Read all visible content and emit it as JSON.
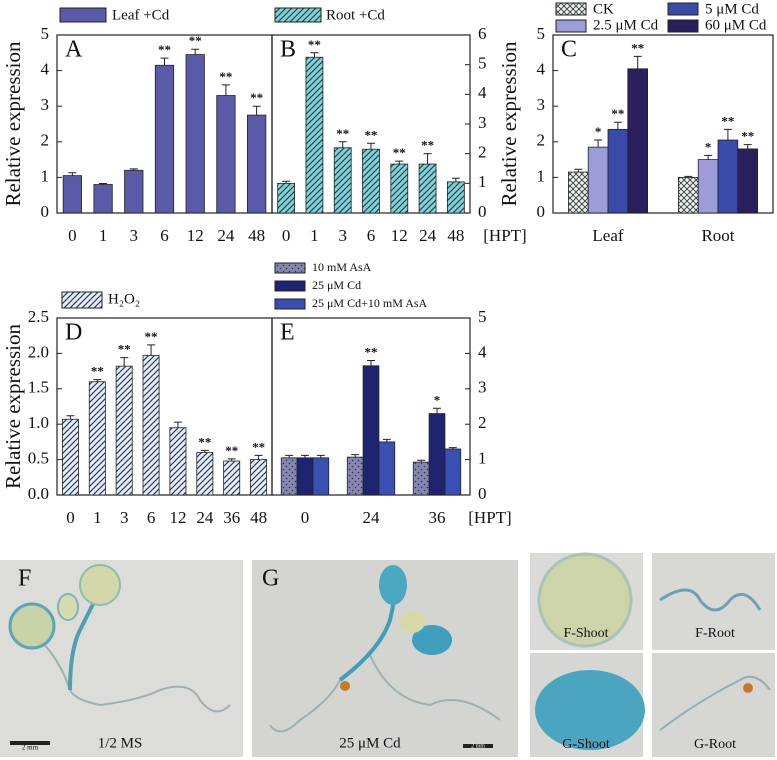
{
  "chart_data": [
    {
      "type": "bar",
      "panel": "A",
      "y_label": "Relative expression",
      "categories": [
        "0",
        "1",
        "3",
        "6",
        "12",
        "24",
        "48"
      ],
      "series": [
        {
          "name": "Leaf +Cd",
          "color": "#5b5aa8",
          "values": [
            1.05,
            0.8,
            1.2,
            4.15,
            4.45,
            3.3,
            2.75
          ],
          "errors": [
            0.08,
            0.03,
            0.04,
            0.2,
            0.15,
            0.3,
            0.25
          ],
          "significance": [
            null,
            null,
            null,
            "**",
            "**",
            "**",
            "**"
          ]
        }
      ],
      "ylim": [
        0,
        5
      ],
      "yticks": [
        0,
        1,
        2,
        3,
        4,
        5
      ],
      "axis_side": "left",
      "grid": false
    },
    {
      "type": "bar",
      "panel": "B",
      "x_label": "[HPT]",
      "categories": [
        "0",
        "1",
        "3",
        "6",
        "12",
        "24",
        "48"
      ],
      "series": [
        {
          "name": "Root +Cd",
          "color": "#7fd3d2",
          "hatch": "diagonal",
          "values": [
            1.0,
            5.25,
            2.2,
            2.15,
            1.65,
            1.65,
            1.05
          ],
          "errors": [
            0.07,
            0.15,
            0.2,
            0.2,
            0.1,
            0.35,
            0.12
          ],
          "significance": [
            null,
            "**",
            "**",
            "**",
            "**",
            "**",
            null
          ]
        }
      ],
      "ylim": [
        0,
        6
      ],
      "yticks": [
        0,
        1,
        2,
        3,
        4,
        5,
        6
      ],
      "axis_side": "right",
      "grid": false
    },
    {
      "type": "bar",
      "panel": "C",
      "y_label": "Relative expression",
      "categories": [
        "Leaf",
        "Root"
      ],
      "series": [
        {
          "name": "CK",
          "color": "#e8f0ec",
          "hatch": "cross",
          "values": [
            1.15,
            1.0
          ],
          "errors": [
            0.08,
            0.03
          ],
          "significance": [
            null,
            null
          ]
        },
        {
          "name": "2.5 μM Cd",
          "color": "#9c9cd8",
          "values": [
            1.85,
            1.5
          ],
          "errors": [
            0.2,
            0.12
          ],
          "significance": [
            "*",
            "*"
          ]
        },
        {
          "name": "5 μM Cd",
          "color": "#3a4aa8",
          "values": [
            2.35,
            2.05
          ],
          "errors": [
            0.2,
            0.3
          ],
          "significance": [
            "**",
            "**"
          ]
        },
        {
          "name": "60 μM Cd",
          "color": "#2a1f5c",
          "values": [
            4.05,
            1.8
          ],
          "errors": [
            0.35,
            0.12
          ],
          "significance": [
            "**",
            "**"
          ]
        }
      ],
      "ylim": [
        0,
        5
      ],
      "yticks": [
        0,
        1,
        2,
        3,
        4,
        5
      ],
      "axis_side": "left",
      "grid": false
    },
    {
      "type": "bar",
      "panel": "D",
      "y_label": "Relative expression",
      "categories": [
        "0",
        "1",
        "3",
        "6",
        "12",
        "24",
        "36",
        "48"
      ],
      "series": [
        {
          "name": "H₂O₂",
          "color": "#e6edf6",
          "hatch": "diagonal",
          "values": [
            1.07,
            1.6,
            1.82,
            1.97,
            0.95,
            0.6,
            0.48,
            0.5
          ],
          "errors": [
            0.05,
            0.03,
            0.12,
            0.15,
            0.08,
            0.03,
            0.03,
            0.06
          ],
          "significance": [
            null,
            "**",
            "**",
            "**",
            null,
            "**",
            "**",
            "**"
          ]
        }
      ],
      "ylim": [
        0,
        2.5
      ],
      "yticks": [
        {
          "value": 0,
          "label": "0.0"
        },
        0.5,
        {
          "value": 1,
          "label": "1.0"
        },
        1.5,
        {
          "value": 2,
          "label": "2.0"
        },
        2.5
      ],
      "axis_side": "left",
      "grid": false
    },
    {
      "type": "bar",
      "panel": "E",
      "x_label": "[HPT]",
      "categories": [
        "0",
        "24",
        "36"
      ],
      "series": [
        {
          "name": "10 mM AsA",
          "color": "#8486b4",
          "hatch": "dots",
          "values": [
            1.05,
            1.07,
            0.93
          ],
          "errors": [
            0.07,
            0.07,
            0.05
          ],
          "significance": [
            null,
            null,
            null
          ]
        },
        {
          "name": "25 μM Cd",
          "color": "#1f2470",
          "values": [
            1.05,
            3.65,
            2.3
          ],
          "errors": [
            0.07,
            0.15,
            0.15
          ],
          "significance": [
            null,
            "**",
            "*"
          ]
        },
        {
          "name": "25 μM Cd+10 mM AsA",
          "color": "#3a4fb2",
          "values": [
            1.05,
            1.5,
            1.3
          ],
          "errors": [
            0.07,
            0.07,
            0.04
          ],
          "significance": [
            null,
            null,
            null
          ]
        }
      ],
      "ylim": [
        0,
        5
      ],
      "yticks": [
        0,
        1,
        2,
        3,
        4,
        5
      ],
      "axis_side": "right",
      "grid": false
    }
  ],
  "images": {
    "F": {
      "label": "F",
      "caption": "1/2 MS",
      "scale_bar": "2 mm"
    },
    "G": {
      "label": "G",
      "caption": "25 μM Cd",
      "scale_bar": "2 mm"
    },
    "crops": [
      "F-Shoot",
      "F-Root",
      "G-Shoot",
      "G-Root"
    ]
  }
}
